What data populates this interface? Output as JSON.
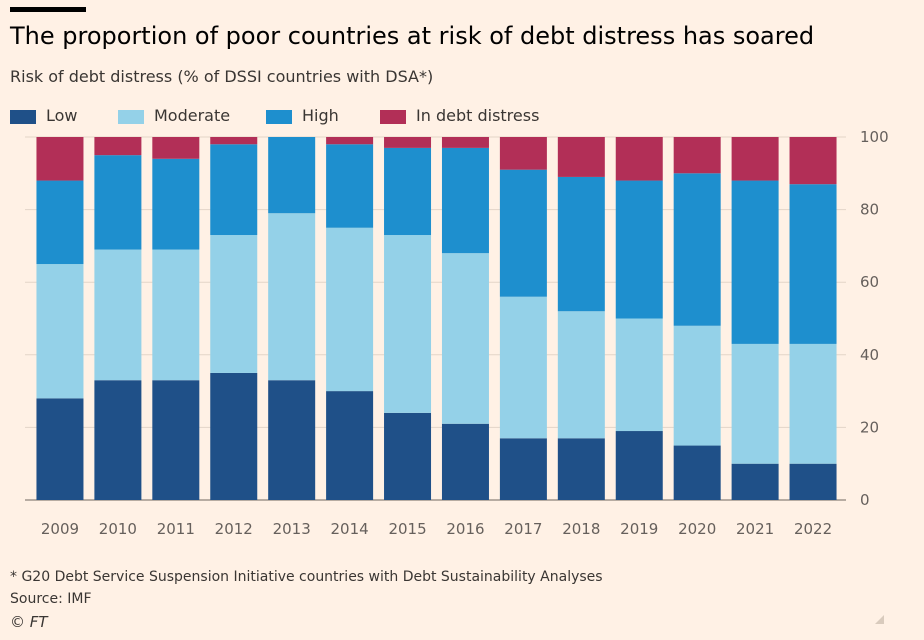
{
  "title": "The proportion of poor countries at risk of debt distress has soared",
  "subtitle": "Risk of debt distress (% of DSSI countries with DSA*)",
  "footnote": "* G20 Debt Service Suspension Initiative countries with Debt Sustainability Analyses",
  "source": "Source: IMF",
  "credit": "© FT",
  "colors": {
    "background": "#fff1e5",
    "low": "#1f5088",
    "moderate": "#94d1e8",
    "high": "#1e8fce",
    "in_debt_distress": "#b22f57",
    "gridline": "#e3d5c8",
    "tick_text": "#66605c"
  },
  "chart_data": {
    "type": "bar",
    "stacked": true,
    "categories": [
      "2009",
      "2010",
      "2011",
      "2012",
      "2013",
      "2014",
      "2015",
      "2016",
      "2017",
      "2018",
      "2019",
      "2020",
      "2021",
      "2022"
    ],
    "series": [
      {
        "name": "Low",
        "color": "#1f5088",
        "values": [
          28,
          33,
          33,
          35,
          33,
          30,
          24,
          21,
          17,
          17,
          19,
          15,
          10,
          10
        ]
      },
      {
        "name": "Moderate",
        "color": "#94d1e8",
        "values": [
          37,
          36,
          36,
          38,
          46,
          45,
          49,
          47,
          39,
          35,
          31,
          33,
          33,
          33
        ]
      },
      {
        "name": "High",
        "color": "#1e8fce",
        "values": [
          23,
          26,
          25,
          25,
          21,
          23,
          24,
          29,
          35,
          37,
          38,
          42,
          45,
          44
        ]
      },
      {
        "name": "In debt distress",
        "color": "#b22f57",
        "values": [
          12,
          5,
          6,
          2,
          0,
          2,
          3,
          3,
          9,
          11,
          12,
          10,
          12,
          13
        ]
      }
    ],
    "y_ticks": [
      "100",
      "80",
      "60",
      "40",
      "20",
      "0"
    ],
    "ylim": [
      0,
      100
    ],
    "y_axis_side": "right",
    "grid": true,
    "legend_placement": "top-left"
  }
}
